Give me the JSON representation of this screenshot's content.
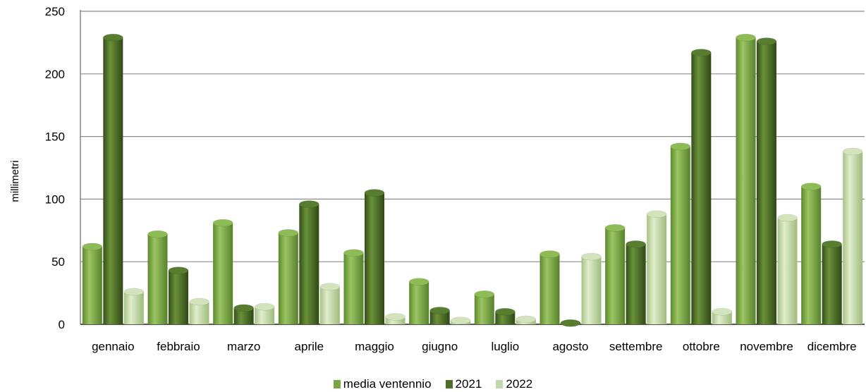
{
  "chart_data": {
    "type": "bar",
    "title": "",
    "xlabel": "",
    "ylabel": "millimetri",
    "ylim": [
      0,
      250
    ],
    "yticks": [
      0,
      50,
      100,
      150,
      200,
      250
    ],
    "grid": true,
    "legend_position": "bottom",
    "categories": [
      "gennaio",
      "febbraio",
      "marzo",
      "aprile",
      "maggio",
      "giugno",
      "luglio",
      "agosto",
      "settembre",
      "ottobre",
      "novembre",
      "dicembre"
    ],
    "series": [
      {
        "name": "media ventennio",
        "color": "#7aa645",
        "values": [
          62,
          72,
          81,
          73,
          57,
          34,
          24,
          56,
          77,
          142,
          229,
          110
        ]
      },
      {
        "name": "2021",
        "color": "#4e6e2a",
        "values": [
          229,
          43,
          13,
          96,
          105,
          11,
          10,
          1,
          64,
          217,
          226,
          64
        ]
      },
      {
        "name": "2022",
        "color": "#c3d8a8",
        "values": [
          26,
          18,
          14,
          30,
          6,
          3,
          4,
          54,
          88,
          10,
          85,
          138
        ]
      }
    ]
  }
}
